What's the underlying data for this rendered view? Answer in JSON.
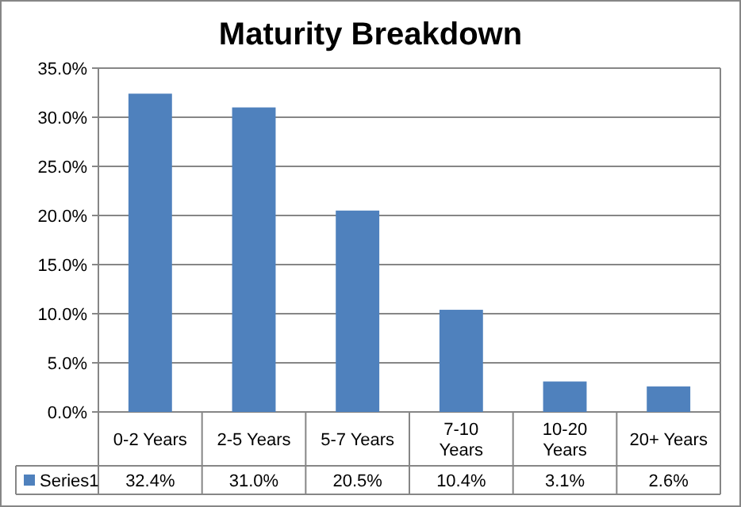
{
  "chart_data": {
    "type": "bar",
    "title": "Maturity Breakdown",
    "categories": [
      "0-2 Years",
      "2-5 Years",
      "5-7 Years",
      "7-10 Years",
      "10-20 Years",
      "20+ Years"
    ],
    "series": [
      {
        "name": "Series1",
        "color": "#4f81bd",
        "values": [
          32.4,
          31.0,
          20.5,
          10.4,
          3.1,
          2.6
        ],
        "value_labels": [
          "32.4%",
          "31.0%",
          "20.5%",
          "10.4%",
          "3.1%",
          "2.6%"
        ]
      }
    ],
    "ylim": [
      0,
      35
    ],
    "yticks": [
      {
        "value": 0,
        "label": "0.0%"
      },
      {
        "value": 5,
        "label": "5.0%"
      },
      {
        "value": 10,
        "label": "10.0%"
      },
      {
        "value": 15,
        "label": "15.0%"
      },
      {
        "value": 20,
        "label": "20.0%"
      },
      {
        "value": 25,
        "label": "25.0%"
      },
      {
        "value": 30,
        "label": "30.0%"
      },
      {
        "value": 35,
        "label": "35.0%"
      }
    ],
    "grid": "y",
    "legend": "bottom"
  }
}
